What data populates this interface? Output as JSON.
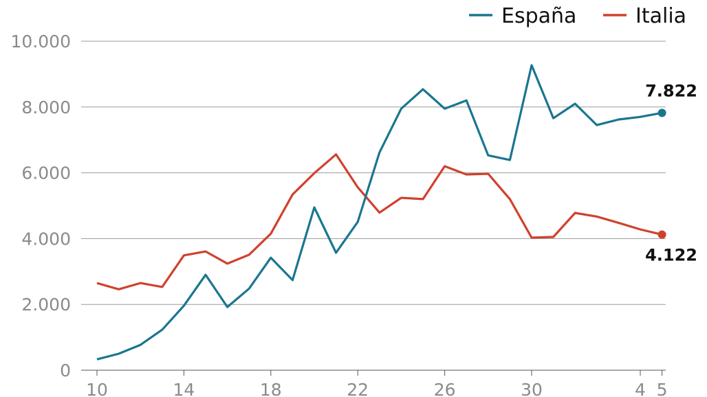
{
  "chart_data": {
    "type": "line",
    "title": "",
    "xlabel": "",
    "ylabel": "",
    "x": [
      "10",
      "11",
      "12",
      "13",
      "14",
      "15",
      "16",
      "17",
      "18",
      "19",
      "20",
      "21",
      "22",
      "23",
      "24",
      "25",
      "26",
      "27",
      "28",
      "29",
      "30",
      "31",
      "1",
      "2",
      "3",
      "4",
      "5"
    ],
    "x_tick_labels": [
      {
        "index": 0,
        "label": "10"
      },
      {
        "index": 4,
        "label": "14"
      },
      {
        "index": 8,
        "label": "18"
      },
      {
        "index": 12,
        "label": "22"
      },
      {
        "index": 16,
        "label": "26"
      },
      {
        "index": 20,
        "label": "30"
      },
      {
        "index": 25,
        "label": "4"
      },
      {
        "index": 26,
        "label": "5"
      }
    ],
    "ylim": [
      0,
      10000
    ],
    "y_ticks": [
      {
        "value": 0,
        "label": "0"
      },
      {
        "value": 2000,
        "label": "2.000"
      },
      {
        "value": 4000,
        "label": "4.000"
      },
      {
        "value": 6000,
        "label": "6.000"
      },
      {
        "value": 8000,
        "label": "8.000"
      },
      {
        "value": 10000,
        "label": "10.000"
      }
    ],
    "grid": true,
    "legend_position": "top-right",
    "series": [
      {
        "name": "España",
        "color": "#1a7690",
        "values": [
          330,
          500,
          770,
          1230,
          1960,
          2900,
          1920,
          2480,
          3420,
          2740,
          4950,
          3570,
          4510,
          6620,
          7950,
          8540,
          7950,
          8200,
          6530,
          6390,
          9270,
          7660,
          8100,
          7450,
          7620,
          7700,
          7822
        ],
        "end_label": "7.822"
      },
      {
        "name": "Italia",
        "color": "#d0412d",
        "values": [
          2650,
          2460,
          2650,
          2530,
          3490,
          3610,
          3240,
          3510,
          4150,
          5340,
          5990,
          6560,
          5560,
          4790,
          5240,
          5200,
          6200,
          5950,
          5970,
          5200,
          4030,
          4050,
          4780,
          4670,
          4480,
          4280,
          4122
        ],
        "end_label": "4.122"
      }
    ]
  }
}
